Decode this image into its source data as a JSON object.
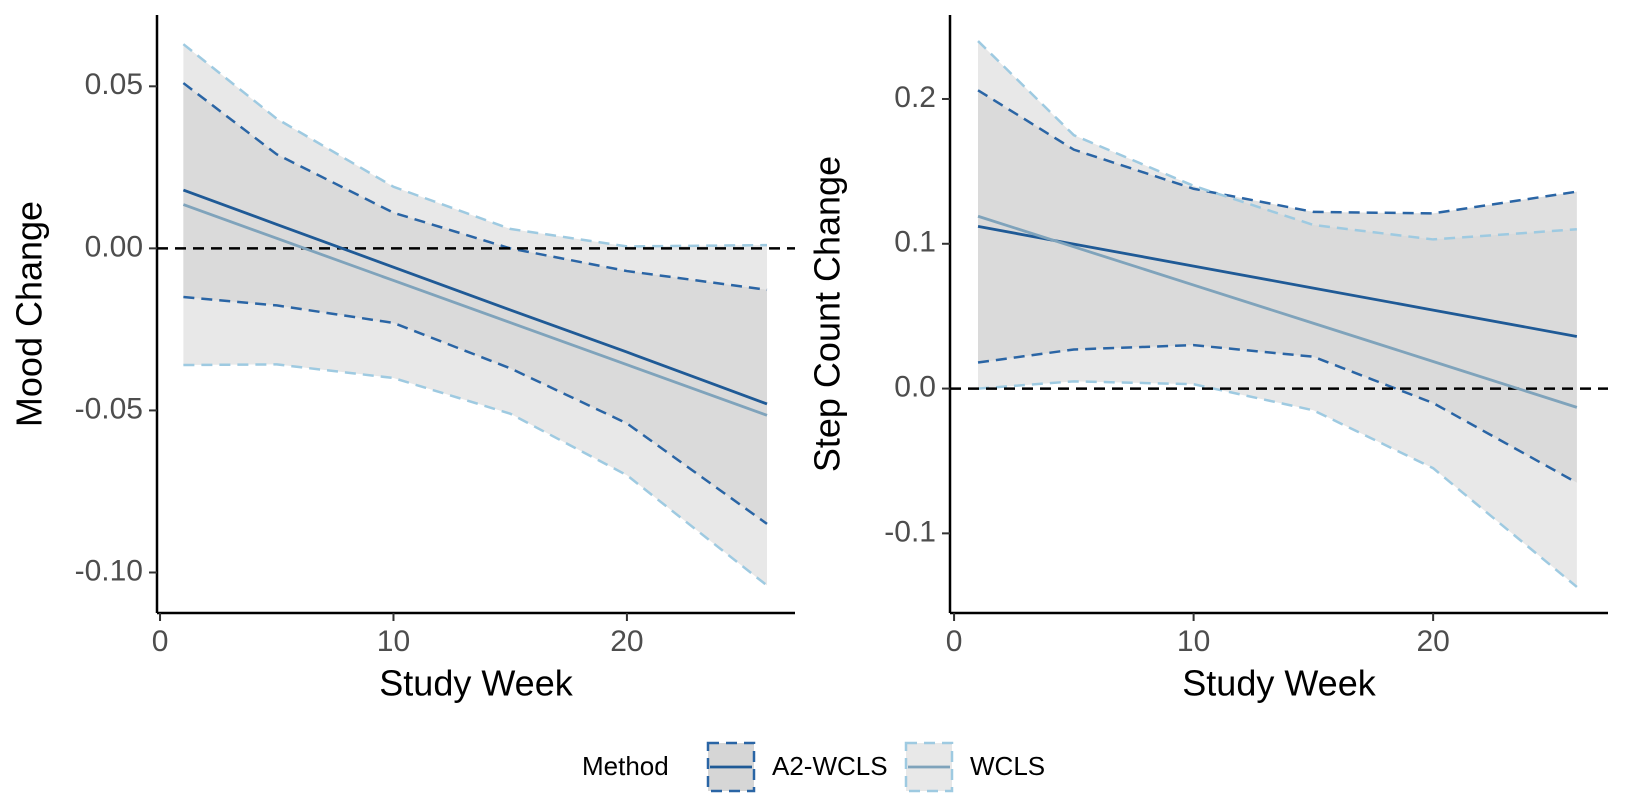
{
  "chart_data": [
    {
      "type": "line",
      "x_label": "Study Week",
      "y_label": "Mood Change",
      "x": [
        1,
        5,
        10,
        15,
        20,
        26
      ],
      "xlim": [
        -0.13,
        27.2
      ],
      "xticks": [
        0,
        10,
        20
      ],
      "ylim": [
        -0.1125,
        0.072
      ],
      "yticks": [
        0.05,
        {
          "value": 0,
          "label": "0.00"
        },
        -0.05,
        {
          "value": -0.1,
          "label": "-0.10"
        }
      ],
      "hline": 0,
      "series": [
        {
          "name": "A2-WCLS",
          "color": "#1f5a96",
          "ci_color": "#2a65a5",
          "values": [
            0.018,
            0.0074,
            -0.0058,
            -0.019,
            -0.032,
            -0.048
          ],
          "upper": [
            0.051,
            0.029,
            0.011,
            0.0,
            -0.007,
            -0.0128
          ],
          "lower": [
            -0.015,
            -0.0176,
            -0.023,
            -0.037,
            -0.054,
            -0.085
          ]
        },
        {
          "name": "WCLS",
          "color": "#7fa3bb",
          "ci_color": "#9ecae1",
          "values": [
            0.0135,
            0.0031,
            -0.0099,
            -0.0229,
            -0.0359,
            -0.0515
          ],
          "upper": [
            0.063,
            0.04,
            0.019,
            0.006,
            0.0006,
            0.001
          ],
          "lower": [
            -0.036,
            -0.0358,
            -0.04,
            -0.051,
            -0.07,
            -0.104
          ]
        }
      ]
    },
    {
      "type": "line",
      "x_label": "Study Week",
      "y_label": "Step Count Change",
      "x": [
        1,
        5,
        10,
        15,
        20,
        26
      ],
      "xlim": [
        -0.17,
        27.3
      ],
      "xticks": [
        0,
        10,
        20
      ],
      "ylim": [
        -0.155,
        0.258
      ],
      "yticks": [
        0.2,
        0.1,
        {
          "value": 0,
          "label": "0.0"
        },
        -0.1
      ],
      "hline": 0,
      "series": [
        {
          "name": "A2-WCLS",
          "color": "#1f5a96",
          "ci_color": "#2a65a5",
          "values": [
            0.112,
            0.0998,
            0.0846,
            0.0694,
            0.0542,
            0.036
          ],
          "upper": [
            0.206,
            0.165,
            0.138,
            0.122,
            0.121,
            0.136
          ],
          "lower": [
            0.018,
            0.027,
            0.03,
            0.022,
            -0.01,
            -0.065
          ]
        },
        {
          "name": "WCLS",
          "color": "#7fa3bb",
          "ci_color": "#9ecae1",
          "values": [
            0.119,
            0.0979,
            0.0715,
            0.0451,
            0.0187,
            -0.013
          ],
          "upper": [
            0.24,
            0.175,
            0.14,
            0.113,
            0.103,
            0.11
          ],
          "lower": [
            0.0,
            0.005,
            0.003,
            -0.015,
            -0.055,
            -0.137
          ]
        }
      ]
    }
  ],
  "legend": {
    "title": "Method"
  }
}
